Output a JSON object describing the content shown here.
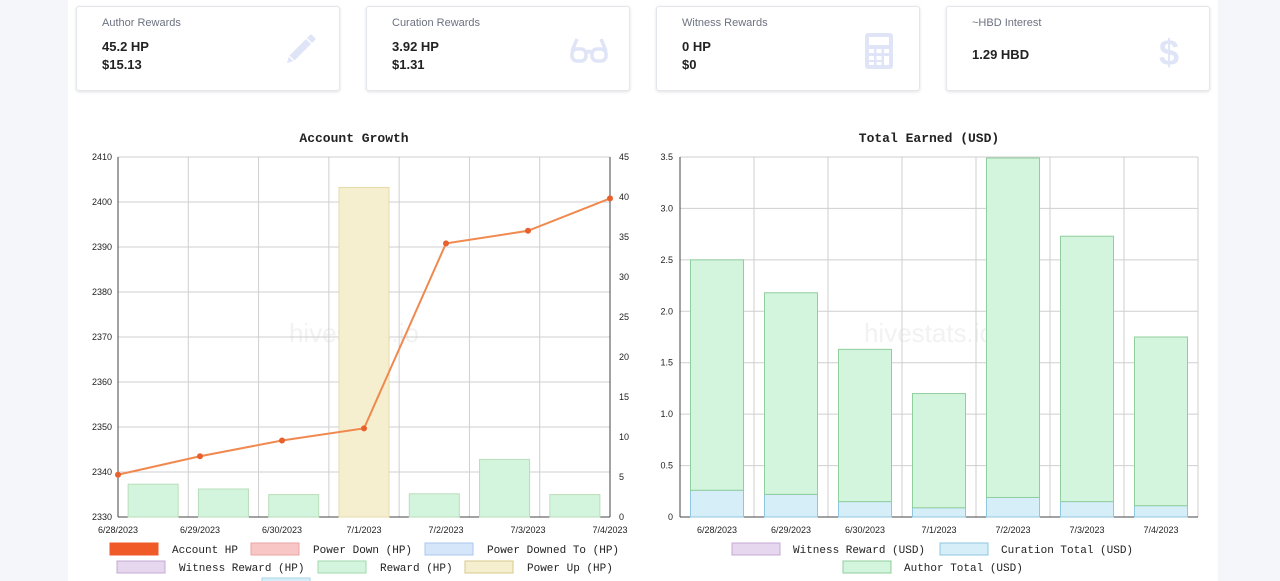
{
  "cards": [
    {
      "label": "Author Rewards",
      "v1": "45.2 HP",
      "v2": "$15.13",
      "icon": "pencil-icon"
    },
    {
      "label": "Curation Rewards",
      "v1": "3.92 HP",
      "v2": "$1.31",
      "icon": "glasses-icon"
    },
    {
      "label": "Witness Rewards",
      "v1": "0 HP",
      "v2": "$0",
      "icon": "calculator-icon"
    },
    {
      "label": "~HBD Interest",
      "v1": "1.29 HBD",
      "v2": "",
      "icon": "dollar-icon"
    }
  ],
  "icon_color": "#dfe4f7",
  "watermark": "hivestats.io",
  "chart_data": [
    {
      "type": "bar+line",
      "title": "Account Growth",
      "categories": [
        "6/28/2023",
        "6/29/2023",
        "6/30/2023",
        "7/1/2023",
        "7/2/2023",
        "7/3/2023",
        "7/4/2023"
      ],
      "ylim_left": [
        2330,
        2410
      ],
      "yticks_left": [
        2330,
        2340,
        2350,
        2360,
        2370,
        2380,
        2390,
        2400,
        2410
      ],
      "ylim_right": [
        0,
        45
      ],
      "yticks_right": [
        0,
        5,
        10,
        15,
        20,
        25,
        30,
        35,
        40,
        45
      ],
      "series": [
        {
          "name": "Account HP",
          "type": "line",
          "axis": "left",
          "values": [
            2339.4,
            2343.5,
            2347,
            2349.7,
            2390.8,
            2393.6,
            2400.8
          ],
          "color": "#f0894f"
        },
        {
          "name": "Power Down (HP)",
          "type": "bar",
          "axis": "right",
          "values": [
            0,
            0,
            0,
            0,
            0,
            0,
            0
          ],
          "color": "#f9c6c6"
        },
        {
          "name": "Power Downed To (HP)",
          "type": "bar",
          "axis": "right",
          "values": [
            0,
            0,
            0,
            0,
            0,
            0,
            0
          ],
          "color": "#d6e6fa"
        },
        {
          "name": "Witness Reward (HP)",
          "type": "bar",
          "axis": "right",
          "values": [
            0,
            0,
            0,
            0,
            0,
            0,
            0
          ],
          "color": "#e6d6ee"
        },
        {
          "name": "Reward (HP)",
          "type": "bar",
          "axis": "right",
          "values": [
            4.1,
            3.5,
            2.8,
            2.0,
            2.9,
            7.2,
            2.8
          ],
          "color": "#d4f5dd"
        },
        {
          "name": "Power Up (HP)",
          "type": "bar",
          "axis": "right",
          "values": [
            0,
            0,
            0,
            41.2,
            0,
            0,
            0
          ],
          "color": "#f5efcf"
        }
      ],
      "legend_position": "bottom"
    },
    {
      "type": "stacked-bar",
      "title": "Total Earned (USD)",
      "categories": [
        "6/28/2023",
        "6/29/2023",
        "6/30/2023",
        "7/1/2023",
        "7/2/2023",
        "7/3/2023",
        "7/4/2023"
      ],
      "ylim": [
        0,
        3.5
      ],
      "yticks": [
        "0",
        "0.5",
        "1.0",
        "1.5",
        "2.0",
        "2.5",
        "3.0",
        "3.5"
      ],
      "series": [
        {
          "name": "Witness Reward (USD)",
          "values": [
            0,
            0,
            0,
            0,
            0,
            0,
            0
          ],
          "color": "#e6d6ee"
        },
        {
          "name": "Curation Total (USD)",
          "values": [
            0.26,
            0.22,
            0.15,
            0.09,
            0.19,
            0.15,
            0.11
          ],
          "color": "#d6eef8"
        },
        {
          "name": "Author Total (USD)",
          "values": [
            2.24,
            1.96,
            1.48,
            1.11,
            3.3,
            2.58,
            1.64
          ],
          "color": "#d4f5dd"
        }
      ],
      "legend_position": "bottom"
    }
  ]
}
